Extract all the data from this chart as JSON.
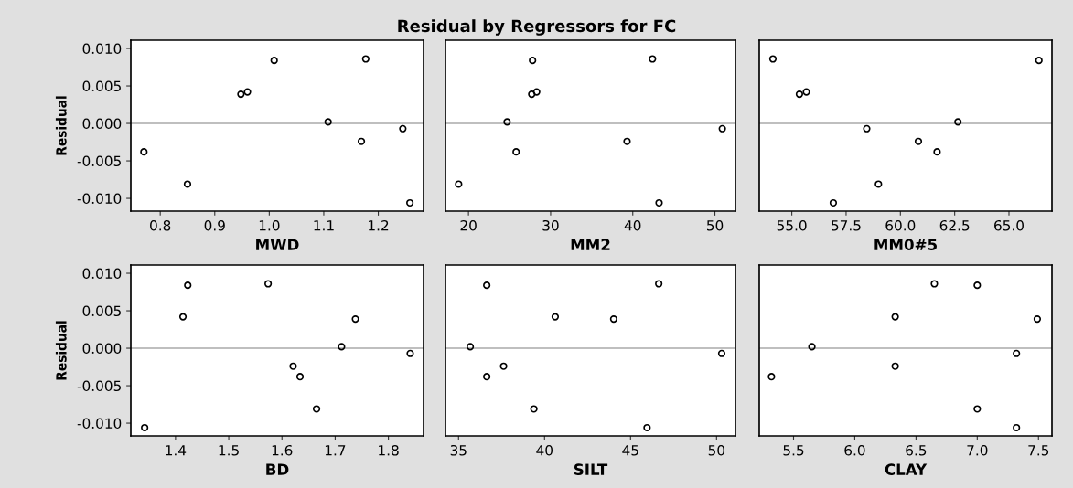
{
  "chart_data": [
    {
      "type": "scatter",
      "xlabel": "MWD",
      "ylabel": "Residual",
      "marker": "circle",
      "grid": false,
      "legend": false,
      "x": [
        0.77,
        0.85,
        0.948,
        0.96,
        1.009,
        1.108,
        1.169,
        1.177,
        1.245,
        1.258
      ],
      "series": [
        {
          "color": "#000000",
          "values": [
            -0.0038,
            -0.0081,
            0.0039,
            0.0042,
            0.0084,
            0.0002,
            -0.0024,
            0.0086,
            -0.0007,
            -0.0106
          ]
        }
      ],
      "xlim": [
        0.746,
        1.283
      ],
      "xticks": [
        {
          "value": 0.8,
          "label": "0.8"
        },
        {
          "value": 0.9,
          "label": "0.9"
        },
        {
          "value": 1.0,
          "label": "1.0"
        },
        {
          "value": 1.1,
          "label": "1.1"
        },
        {
          "value": 1.2,
          "label": "1.2"
        }
      ],
      "ylim": [
        -0.0117,
        0.0111
      ],
      "yticks": [
        {
          "value": -0.01,
          "label": "-0.010"
        },
        {
          "value": -0.005,
          "label": "-0.005"
        },
        {
          "value": 0,
          "label": "0.000"
        },
        {
          "value": 0.005,
          "label": "0.005"
        },
        {
          "value": 0.01,
          "label": "0.010"
        }
      ],
      "ref_lines": [
        {
          "axis": "y",
          "value": 0,
          "color": "#808080"
        }
      ]
    },
    {
      "type": "scatter",
      "title": "Residual by Regressors for FC",
      "xlabel": "MM2",
      "marker": "circle",
      "grid": false,
      "legend": false,
      "tick_labels": "x",
      "x": [
        18.8,
        27.8,
        27.7,
        28.3,
        24.7,
        25.8,
        42.4,
        39.3,
        50.9,
        43.2
      ],
      "series": [
        {
          "color": "#000000",
          "values": [
            -0.0081,
            0.0084,
            0.0039,
            0.0042,
            0.0002,
            -0.0038,
            0.0086,
            -0.0024,
            -0.0007,
            -0.0106
          ]
        }
      ],
      "xlim": [
        17.2,
        52.5
      ],
      "xticks": [
        20,
        30,
        40,
        50
      ],
      "ylim": [
        -0.0117,
        0.0111
      ],
      "ref_lines": [
        {
          "axis": "y",
          "value": 0,
          "color": "#808080"
        }
      ]
    },
    {
      "type": "scatter",
      "xlabel": "MM0#5",
      "marker": "circle",
      "grid": false,
      "legend": false,
      "tick_labels": "x",
      "x": [
        54.13,
        55.35,
        55.67,
        58.45,
        62.65,
        60.83,
        61.69,
        58.99,
        56.91,
        66.38
      ],
      "series": [
        {
          "color": "#000000",
          "values": [
            0.0086,
            0.0039,
            0.0042,
            -0.0007,
            0.0002,
            -0.0024,
            -0.0038,
            -0.0081,
            -0.0106,
            0.0084
          ]
        }
      ],
      "xlim": [
        53.5,
        66.98
      ],
      "xticks": [
        {
          "value": 55,
          "label": "55.0"
        },
        {
          "value": 57.5,
          "label": "57.5"
        },
        {
          "value": 60,
          "label": "60.0"
        },
        {
          "value": 62.5,
          "label": "62.5"
        },
        {
          "value": 65,
          "label": "65.0"
        }
      ],
      "ylim": [
        -0.0117,
        0.0111
      ],
      "ref_lines": [
        {
          "axis": "y",
          "value": 0,
          "color": "#808080"
        }
      ]
    },
    {
      "type": "scatter",
      "xlabel": "BD",
      "ylabel": "Residual",
      "marker": "circle",
      "grid": false,
      "legend": false,
      "x": [
        1.342,
        1.414,
        1.423,
        1.574,
        1.621,
        1.634,
        1.665,
        1.712,
        1.738,
        1.841
      ],
      "series": [
        {
          "color": "#000000",
          "values": [
            -0.0106,
            0.0042,
            0.0084,
            0.0086,
            -0.0024,
            -0.0038,
            -0.0081,
            0.0002,
            0.0039,
            -0.0007
          ]
        }
      ],
      "xlim": [
        1.316,
        1.866
      ],
      "xticks": [
        1.4,
        1.5,
        1.6,
        1.7,
        1.8
      ],
      "ylim": [
        -0.0117,
        0.0111
      ],
      "yticks": [
        {
          "value": -0.01,
          "label": "-0.010"
        },
        {
          "value": -0.005,
          "label": "-0.005"
        },
        {
          "value": 0,
          "label": "0.000"
        },
        {
          "value": 0.005,
          "label": "0.005"
        },
        {
          "value": 0.01,
          "label": "0.010"
        }
      ],
      "ref_lines": [
        {
          "axis": "y",
          "value": 0,
          "color": "#808080"
        }
      ]
    },
    {
      "type": "scatter",
      "xlabel": "SILT",
      "marker": "circle",
      "grid": false,
      "legend": false,
      "tick_labels": "x",
      "x": [
        36.64,
        46.64,
        40.62,
        44.02,
        35.68,
        50.3,
        37.62,
        36.64,
        39.38,
        45.96
      ],
      "series": [
        {
          "color": "#000000",
          "values": [
            0.0084,
            0.0086,
            0.0042,
            0.0039,
            0.0002,
            -0.0007,
            -0.0024,
            -0.0038,
            -0.0081,
            -0.0106
          ]
        }
      ],
      "xlim": [
        34.24,
        51.1
      ],
      "xticks": [
        35,
        40,
        45,
        50
      ],
      "ylim": [
        -0.0117,
        0.0111
      ],
      "ref_lines": [
        {
          "axis": "y",
          "value": 0,
          "color": "#808080"
        }
      ]
    },
    {
      "type": "scatter",
      "xlabel": "CLAY",
      "marker": "circle",
      "grid": false,
      "legend": false,
      "tick_labels": "x",
      "x": [
        5.32,
        5.65,
        6.33,
        6.33,
        6.65,
        7.0,
        7.0,
        7.32,
        7.32,
        7.49
      ],
      "series": [
        {
          "color": "#000000",
          "values": [
            -0.0038,
            0.0002,
            0.0042,
            -0.0024,
            0.0086,
            0.0084,
            -0.0081,
            -0.0007,
            -0.0106,
            0.0039
          ]
        }
      ],
      "xlim": [
        5.22,
        7.61
      ],
      "xticks": [
        {
          "value": 5.5,
          "label": "5.5"
        },
        {
          "value": 6.0,
          "label": "6.0"
        },
        {
          "value": 6.5,
          "label": "6.5"
        },
        {
          "value": 7.0,
          "label": "7.0"
        },
        {
          "value": 7.5,
          "label": "7.5"
        }
      ],
      "ylim": [
        -0.0117,
        0.0111
      ],
      "ref_lines": [
        {
          "axis": "y",
          "value": 0,
          "color": "#808080"
        }
      ]
    }
  ]
}
